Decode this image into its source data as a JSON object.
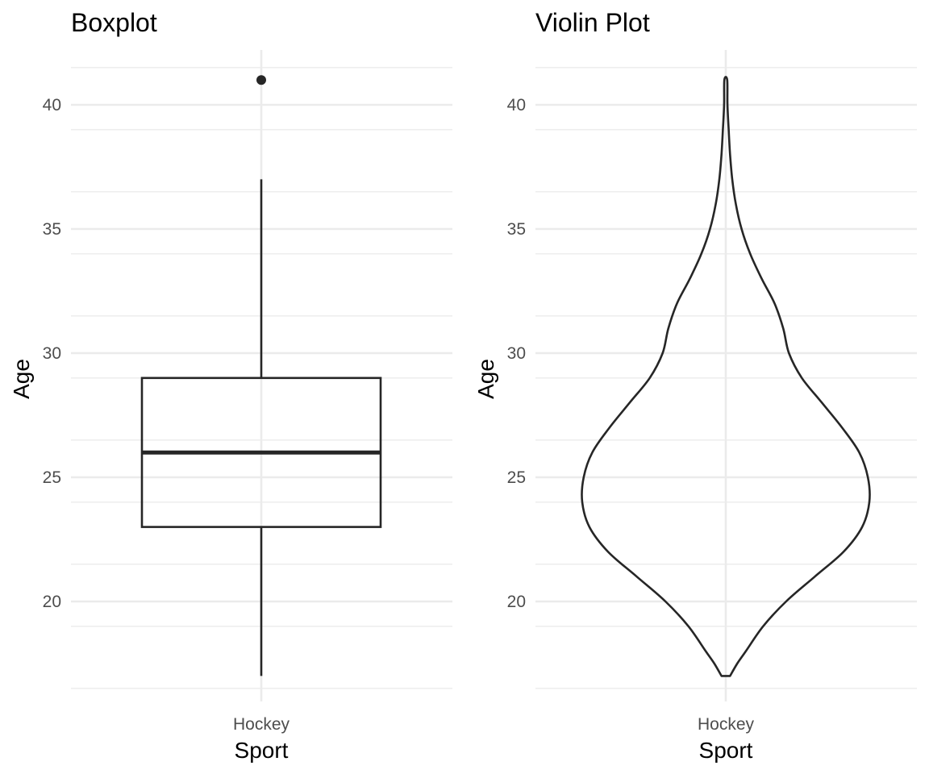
{
  "chart_data": [
    {
      "type": "boxplot",
      "title": "Boxplot",
      "xlabel": "Sport",
      "ylabel": "Age",
      "categories": [
        "Hockey"
      ],
      "ylim": [
        16.5,
        42.2
      ],
      "y_ticks": [
        "20",
        "25",
        "30",
        "35",
        "40"
      ],
      "y_tick_values": [
        20,
        25,
        30,
        35,
        40
      ],
      "grid": true,
      "box": {
        "lower_whisker": 17,
        "q1": 23,
        "median": 26,
        "q3": 29,
        "upper_whisker": 37,
        "outliers": [
          41
        ]
      }
    },
    {
      "type": "violin",
      "title": "Violin Plot",
      "xlabel": "Sport",
      "ylabel": "Age",
      "categories": [
        "Hockey"
      ],
      "ylim": [
        16.5,
        42.2
      ],
      "y_ticks": [
        "20",
        "25",
        "30",
        "35",
        "40"
      ],
      "y_tick_values": [
        20,
        25,
        30,
        35,
        40
      ],
      "grid": true,
      "range": [
        17,
        41
      ],
      "density_profile": [
        [
          17,
          0.03
        ],
        [
          17.5,
          0.08
        ],
        [
          18,
          0.14
        ],
        [
          19,
          0.26
        ],
        [
          20,
          0.42
        ],
        [
          21,
          0.62
        ],
        [
          22,
          0.82
        ],
        [
          23,
          0.95
        ],
        [
          24,
          1.0
        ],
        [
          25,
          0.99
        ],
        [
          26,
          0.93
        ],
        [
          27,
          0.81
        ],
        [
          28,
          0.67
        ],
        [
          29,
          0.53
        ],
        [
          30,
          0.44
        ],
        [
          31,
          0.4
        ],
        [
          32,
          0.34
        ],
        [
          33,
          0.25
        ],
        [
          34,
          0.17
        ],
        [
          35,
          0.11
        ],
        [
          36,
          0.07
        ],
        [
          37,
          0.045
        ],
        [
          38,
          0.03
        ],
        [
          39,
          0.02
        ],
        [
          40,
          0.012
        ],
        [
          41,
          0.01
        ]
      ]
    }
  ]
}
